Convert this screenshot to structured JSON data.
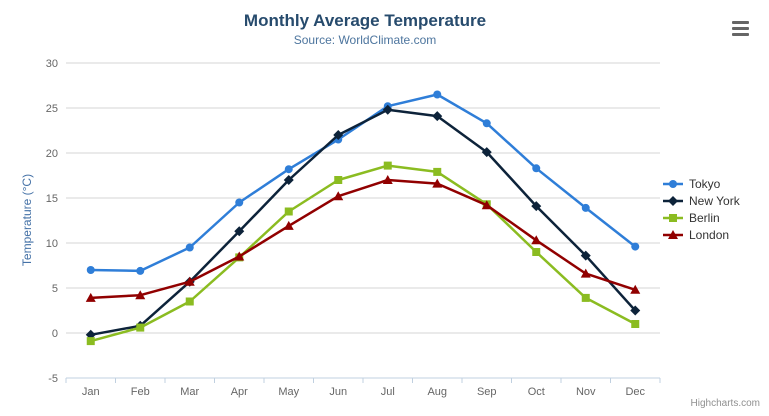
{
  "chart_data": {
    "type": "line",
    "title": "Monthly Average Temperature",
    "subtitle": "Source: WorldClimate.com",
    "ylabel": "Temperature (°C)",
    "xlabel": "",
    "categories": [
      "Jan",
      "Feb",
      "Mar",
      "Apr",
      "May",
      "Jun",
      "Jul",
      "Aug",
      "Sep",
      "Oct",
      "Nov",
      "Dec"
    ],
    "ylim": [
      -5,
      30
    ],
    "yticks": [
      -5,
      0,
      5,
      10,
      15,
      20,
      25,
      30
    ],
    "grid": true,
    "legend_position": "right",
    "series": [
      {
        "name": "Tokyo",
        "marker": "circle",
        "color": "#2f7ed8",
        "values": [
          7.0,
          6.9,
          9.5,
          14.5,
          18.2,
          21.5,
          25.2,
          26.5,
          23.3,
          18.3,
          13.9,
          9.6
        ]
      },
      {
        "name": "New York",
        "marker": "diamond",
        "color": "#0d233a",
        "values": [
          -0.2,
          0.8,
          5.7,
          11.3,
          17.0,
          22.0,
          24.8,
          24.1,
          20.1,
          14.1,
          8.6,
          2.5
        ]
      },
      {
        "name": "Berlin",
        "marker": "square",
        "color": "#8bbc21",
        "values": [
          -0.9,
          0.6,
          3.5,
          8.4,
          13.5,
          17.0,
          18.6,
          17.9,
          14.3,
          9.0,
          3.9,
          1.0
        ]
      },
      {
        "name": "London",
        "marker": "triangle",
        "color": "#910000",
        "values": [
          3.9,
          4.2,
          5.7,
          8.5,
          11.9,
          15.2,
          17.0,
          16.6,
          14.2,
          10.3,
          6.6,
          4.8
        ]
      }
    ]
  },
  "credits": {
    "label": "Highcharts.com"
  },
  "icons": {
    "menu": "hamburger-menu-icon"
  },
  "colors": {
    "title": "#274b6d",
    "subtitle": "#4d759e",
    "y_axis_title": "#4572a7",
    "axis_labels": "#666666",
    "grid_line": "#d4d4d4",
    "axis_line": "#c0d0e0",
    "legend_text": "#333333",
    "credits": "#909090",
    "menu_icon": "#666666"
  }
}
